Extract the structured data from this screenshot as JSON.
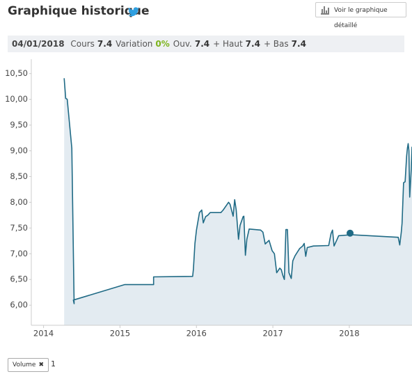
{
  "header": {
    "title": "Graphique historique",
    "button": "Voir le graphique détaillé"
  },
  "info_bar": {
    "date": "04/01/2018",
    "items": [
      {
        "label": "Cours",
        "value": "7.4"
      },
      {
        "label": "Variation",
        "value": "0%"
      },
      {
        "label": "Ouv.",
        "value": "7.4"
      },
      {
        "label": "+ Haut",
        "value": "7.4"
      },
      {
        "label": "+ Bas",
        "value": "7.4"
      }
    ]
  },
  "footer": {
    "tag": "Volume",
    "count": "1"
  },
  "chart_data": {
    "type": "area",
    "color": "#1f6a85",
    "fill": "#e3ebf1",
    "x": [
      2014.27,
      2014.29,
      2014.31,
      2014.37,
      2014.4,
      2014.39,
      2015.06,
      2015.44,
      2015.44,
      2015.95,
      2015.96,
      2015.98,
      2016.0,
      2016.04,
      2016.07,
      2016.09,
      2016.12,
      2016.15,
      2016.18,
      2016.32,
      2016.35,
      2016.42,
      2016.44,
      2016.48,
      2016.5,
      2016.52,
      2016.55,
      2016.57,
      2016.61,
      2016.62,
      2016.64,
      2016.66,
      2016.69,
      2016.84,
      2016.87,
      2016.9,
      2016.95,
      2016.99,
      2017.02,
      2017.05,
      2017.09,
      2017.11,
      2017.13,
      2017.15,
      2017.17,
      2017.19,
      2017.21,
      2017.24,
      2017.26,
      2017.29,
      2017.32,
      2017.35,
      2017.39,
      2017.41,
      2017.43,
      2017.45,
      2017.53,
      2017.73,
      2017.76,
      2017.78,
      2017.8,
      2017.84,
      2017.86,
      2018.03,
      2018.64,
      2018.66,
      2018.68,
      2018.69,
      2018.71,
      2018.73,
      2018.75,
      2018.76,
      2018.77,
      2018.78,
      2018.79,
      2018.81,
      2018.82
    ],
    "values": [
      10.41,
      10.02,
      10.0,
      9.05,
      6.03,
      6.1,
      6.4,
      6.4,
      6.55,
      6.56,
      6.7,
      7.2,
      7.46,
      7.8,
      7.85,
      7.6,
      7.72,
      7.75,
      7.8,
      7.8,
      7.85,
      8.0,
      7.96,
      7.73,
      8.05,
      7.85,
      7.28,
      7.55,
      7.72,
      7.73,
      6.97,
      7.28,
      7.48,
      7.46,
      7.42,
      7.19,
      7.26,
      7.06,
      7.0,
      6.63,
      6.72,
      6.69,
      6.58,
      6.5,
      7.47,
      7.47,
      6.63,
      6.52,
      6.86,
      6.96,
      7.03,
      7.1,
      7.15,
      7.2,
      6.95,
      7.12,
      7.15,
      7.16,
      7.39,
      7.46,
      7.15,
      7.28,
      7.35,
      7.37,
      7.32,
      7.17,
      7.42,
      7.59,
      8.38,
      8.4,
      8.9,
      9.05,
      9.14,
      9.0,
      8.1,
      8.65,
      9.08
    ],
    "marker": {
      "x": 2018.01,
      "y": 7.4
    },
    "xlim": [
      2013.84,
      2018.82
    ],
    "xticks": [
      2014,
      2015,
      2016,
      2017,
      2018
    ],
    "ylim": [
      5.61,
      10.78
    ],
    "yticks": [
      {
        "value": 6,
        "label": "6,00"
      },
      {
        "value": 6.5,
        "label": "6,50"
      },
      {
        "value": 7,
        "label": "7,00"
      },
      {
        "value": 7.5,
        "label": "7,50"
      },
      {
        "value": 8,
        "label": "8,00"
      },
      {
        "value": 8.5,
        "label": "8,50"
      },
      {
        "value": 9,
        "label": "9,00"
      },
      {
        "value": 9.5,
        "label": "9,50"
      },
      {
        "value": 10,
        "label": "10,00"
      },
      {
        "value": 10.5,
        "label": "10,50"
      }
    ]
  }
}
